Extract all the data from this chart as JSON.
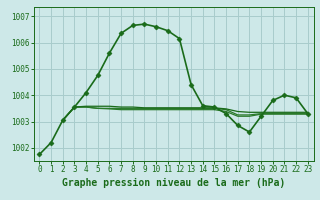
{
  "line1": {
    "x": [
      0,
      1,
      2,
      3,
      4,
      5,
      6,
      7,
      8,
      9,
      10,
      11,
      12,
      13,
      14,
      15,
      16,
      17,
      18,
      19,
      20,
      21,
      22,
      23
    ],
    "y": [
      1001.75,
      1002.2,
      1003.05,
      1003.55,
      1004.1,
      1004.75,
      1005.6,
      1006.35,
      1006.65,
      1006.7,
      1006.6,
      1006.45,
      1006.15,
      1004.4,
      1003.6,
      1003.55,
      1003.3,
      1002.85,
      1002.6,
      1003.2,
      1003.8,
      1004.0,
      1003.9,
      1003.3
    ],
    "color": "#1a6b1a",
    "marker": "D",
    "markersize": 2.5,
    "linewidth": 1.2
  },
  "line2": {
    "x": [
      2,
      3,
      4,
      5,
      6,
      7,
      8,
      9,
      10,
      11,
      12,
      13,
      14,
      15,
      16,
      17,
      18,
      19,
      20,
      21,
      22,
      23
    ],
    "y": [
      1003.05,
      1003.55,
      1003.55,
      1003.5,
      1003.5,
      1003.5,
      1003.5,
      1003.5,
      1003.5,
      1003.5,
      1003.5,
      1003.5,
      1003.5,
      1003.5,
      1003.45,
      1003.25,
      1003.25,
      1003.3,
      1003.3,
      1003.3,
      1003.3,
      1003.3
    ],
    "color": "#2a7a2a",
    "linewidth": 0.9
  },
  "line3": {
    "x": [
      2,
      3,
      4,
      5,
      6,
      7,
      8,
      9,
      10,
      11,
      12,
      13,
      14,
      15,
      16,
      17,
      18,
      19,
      20,
      21,
      22,
      23
    ],
    "y": [
      1003.05,
      1003.55,
      1003.55,
      1003.5,
      1003.48,
      1003.45,
      1003.45,
      1003.45,
      1003.45,
      1003.45,
      1003.45,
      1003.45,
      1003.45,
      1003.45,
      1003.38,
      1003.2,
      1003.2,
      1003.28,
      1003.28,
      1003.28,
      1003.28,
      1003.28
    ],
    "color": "#2a7a2a",
    "linewidth": 0.9
  },
  "line4": {
    "x": [
      2,
      3,
      4,
      5,
      6,
      7,
      8,
      9,
      10,
      11,
      12,
      13,
      14,
      15,
      16,
      17,
      18,
      19,
      20,
      21,
      22,
      23
    ],
    "y": [
      1003.05,
      1003.55,
      1003.58,
      1003.58,
      1003.58,
      1003.55,
      1003.55,
      1003.52,
      1003.52,
      1003.52,
      1003.52,
      1003.52,
      1003.52,
      1003.52,
      1003.48,
      1003.38,
      1003.35,
      1003.35,
      1003.35,
      1003.35,
      1003.35,
      1003.35
    ],
    "color": "#1a6b1a",
    "linewidth": 0.9
  },
  "bg_color": "#cde8e8",
  "grid_color": "#a8cccc",
  "line_color": "#1a6b1a",
  "xlabel": "Graphe pression niveau de la mer (hPa)",
  "xlim": [
    -0.5,
    23.5
  ],
  "ylim": [
    1001.5,
    1007.35
  ],
  "yticks": [
    1002,
    1003,
    1004,
    1005,
    1006,
    1007
  ],
  "xticks": [
    0,
    1,
    2,
    3,
    4,
    5,
    6,
    7,
    8,
    9,
    10,
    11,
    12,
    13,
    14,
    15,
    16,
    17,
    18,
    19,
    20,
    21,
    22,
    23
  ],
  "tick_fontsize": 5.5,
  "xlabel_fontsize": 7.0
}
